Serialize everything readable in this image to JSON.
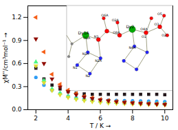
{
  "chart_data": {
    "type": "scatter",
    "xlabel": "T / K",
    "ylabel": "χM''/cm³mol⁻¹",
    "xlim": [
      1.5,
      10.5
    ],
    "ylim": [
      0.0,
      1.35
    ],
    "xticks": [
      2,
      4,
      6,
      8,
      10
    ],
    "yticks": [
      {
        "value": 0.0,
        "label": "0.0"
      },
      0.3,
      0.6,
      0.9,
      1.2
    ],
    "x": [
      2.0,
      2.5,
      3.0,
      3.5,
      4.0,
      4.5,
      5.0,
      5.5,
      6.0,
      6.5,
      7.0,
      7.5,
      8.0,
      8.5,
      9.0,
      9.5,
      10.0
    ],
    "series": [
      {
        "marker": "square",
        "values": [
          0.54,
          0.4,
          0.32,
          0.27,
          0.235,
          0.215,
          0.205,
          0.2,
          0.2,
          0.2,
          0.2,
          0.2,
          0.2,
          0.2,
          0.2,
          0.2,
          0.195
        ]
      },
      {
        "marker": "circle",
        "values": [
          0.42,
          0.32,
          0.255,
          0.21,
          0.175,
          0.155,
          0.145,
          0.135,
          0.13,
          0.125,
          0.12,
          0.118,
          0.115,
          0.112,
          0.11,
          0.108,
          0.105
        ]
      },
      {
        "marker": "triangle-up",
        "values": [
          0.62,
          0.38,
          0.27,
          0.215,
          0.175,
          0.15,
          0.135,
          0.12,
          0.11,
          0.1,
          0.095,
          0.09,
          0.085,
          0.082,
          0.08,
          0.078,
          0.075
        ]
      },
      {
        "marker": "triangle-down",
        "values": [
          0.57,
          0.35,
          0.25,
          0.195,
          0.16,
          0.135,
          0.118,
          0.105,
          0.095,
          0.088,
          0.082,
          0.078,
          0.074,
          0.07,
          0.068,
          0.065,
          0.063
        ]
      },
      {
        "marker": "triangle-left",
        "values": [
          1.2,
          0.75,
          0.46,
          0.33,
          0.255,
          0.21,
          0.175,
          0.155,
          0.135,
          0.12,
          0.108,
          0.098,
          0.09,
          0.085,
          0.08,
          0.075,
          0.072
        ]
      },
      {
        "marker": "triangle-down",
        "values": [
          0.92,
          0.6,
          0.4,
          0.295,
          0.235,
          0.195,
          0.165,
          0.145,
          0.128,
          0.115,
          0.105,
          0.096,
          0.089,
          0.083,
          0.078,
          0.074,
          0.07
        ]
      }
    ],
    "annotations": [
      "Dy1A",
      "Dy2",
      "O1A",
      "N3",
      "O8A",
      "N4A",
      "O1",
      "O4A",
      "O3",
      "O5",
      "O2",
      "N1A",
      "N2A",
      "N1",
      "N2",
      "O6A",
      "O2A"
    ],
    "legend": false
  }
}
